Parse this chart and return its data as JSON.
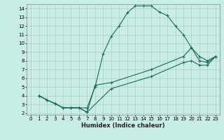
{
  "xlabel": "Humidex (Indice chaleur)",
  "bg_color": "#c8ece6",
  "grid_color": "#b0ccc8",
  "line_color": "#1a6b5a",
  "xlim": [
    -0.5,
    23.5
  ],
  "ylim": [
    1.8,
    14.5
  ],
  "xtick_labels": [
    "0",
    "1",
    "2",
    "3",
    "4",
    "5",
    "6",
    "7",
    "8",
    "9",
    "10",
    "11",
    "12",
    "13",
    "14",
    "15",
    "16",
    "17",
    "18",
    "19",
    "20",
    "21",
    "22",
    "23"
  ],
  "xticks": [
    0,
    1,
    2,
    3,
    4,
    5,
    6,
    7,
    8,
    9,
    10,
    11,
    12,
    13,
    14,
    15,
    16,
    17,
    18,
    19,
    20,
    21,
    22,
    23
  ],
  "yticks": [
    2,
    3,
    4,
    5,
    6,
    7,
    8,
    9,
    10,
    11,
    12,
    13,
    14
  ],
  "series": [
    [
      [
        1,
        4
      ],
      [
        2,
        3.5
      ],
      [
        3,
        3.1
      ],
      [
        4,
        2.6
      ],
      [
        5,
        2.6
      ],
      [
        6,
        2.6
      ],
      [
        7,
        2.6
      ],
      [
        8,
        5.0
      ],
      [
        9,
        8.8
      ],
      [
        10,
        10.8
      ],
      [
        11,
        12.0
      ],
      [
        12,
        13.5
      ],
      [
        13,
        14.3
      ],
      [
        14,
        14.3
      ],
      [
        15,
        14.3
      ],
      [
        16,
        13.6
      ],
      [
        17,
        13.2
      ],
      [
        18,
        12.0
      ],
      [
        19,
        11.0
      ],
      [
        20,
        9.5
      ],
      [
        21,
        8.5
      ],
      [
        22,
        8.0
      ],
      [
        23,
        8.5
      ]
    ],
    [
      [
        1,
        4
      ],
      [
        2,
        3.5
      ],
      [
        3,
        3.1
      ],
      [
        4,
        2.6
      ],
      [
        5,
        2.6
      ],
      [
        6,
        2.6
      ],
      [
        7,
        2.1
      ],
      [
        8,
        5.2
      ],
      [
        10,
        5.5
      ],
      [
        15,
        7.0
      ],
      [
        19,
        8.5
      ],
      [
        20,
        9.5
      ],
      [
        21,
        8.0
      ],
      [
        22,
        7.8
      ],
      [
        23,
        8.5
      ]
    ],
    [
      [
        1,
        4
      ],
      [
        2,
        3.5
      ],
      [
        3,
        3.1
      ],
      [
        4,
        2.6
      ],
      [
        5,
        2.6
      ],
      [
        6,
        2.6
      ],
      [
        7,
        2.1
      ],
      [
        10,
        4.8
      ],
      [
        15,
        6.2
      ],
      [
        19,
        7.8
      ],
      [
        20,
        8.0
      ],
      [
        21,
        7.5
      ],
      [
        22,
        7.5
      ],
      [
        23,
        8.5
      ]
    ]
  ]
}
